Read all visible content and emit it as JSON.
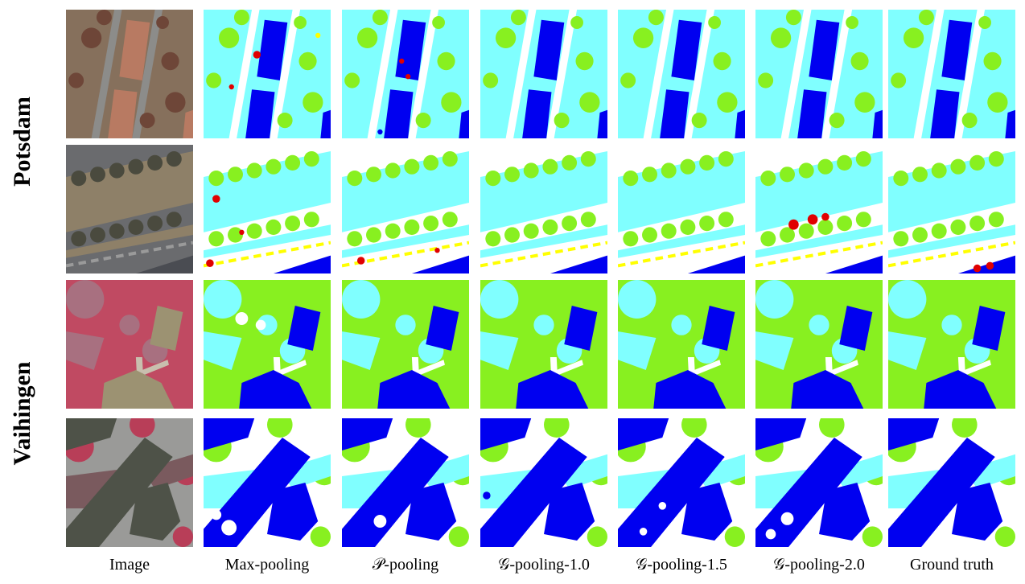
{
  "figure": {
    "row_labels": [
      "Potsdam",
      "Vaihingen"
    ],
    "column_labels": [
      "Image",
      "Max-pooling",
      "𝒫-pooling",
      "𝒢-pooling-1.0",
      "𝒢-pooling-1.5",
      "𝒢-pooling-2.0",
      "Ground truth"
    ]
  }
}
